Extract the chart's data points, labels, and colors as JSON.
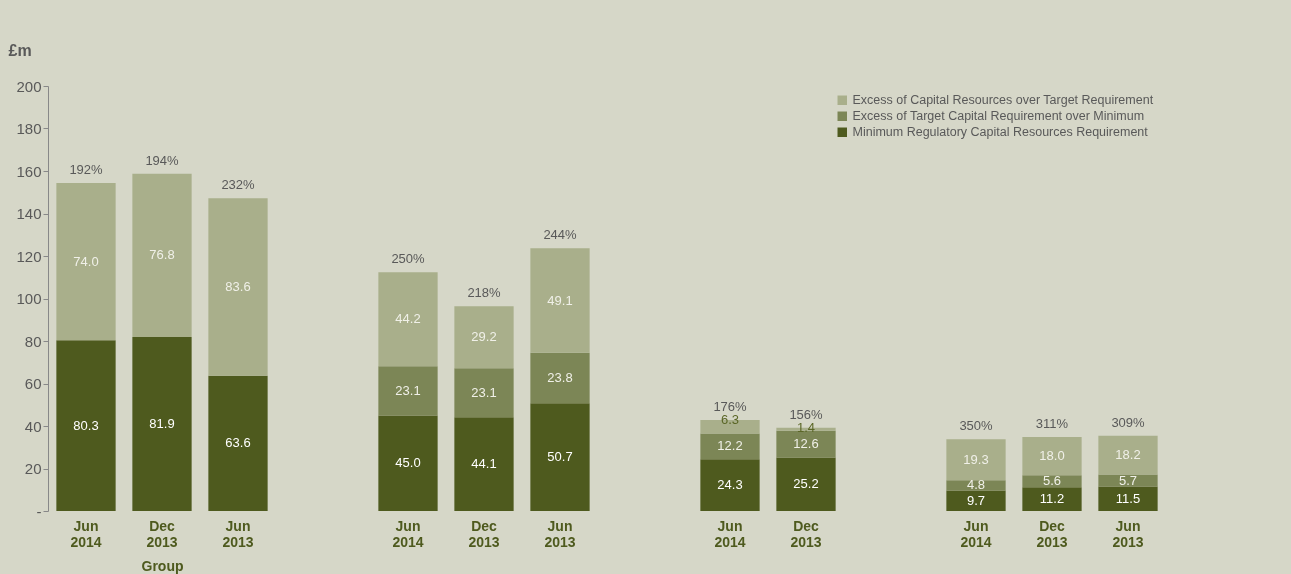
{
  "chart_data": [
    {
      "type": "bar",
      "stacked": true,
      "categories": [
        "Jun 2014",
        "Dec 2013",
        "Jun 2013"
      ],
      "xlabel": "Group",
      "ylabel": "£m",
      "legend": "top right",
      "ylim": [
        0,
        200
      ],
      "yticks": [
        {
          "value": 0,
          "label": "-"
        },
        20,
        40,
        60,
        80,
        100,
        120,
        140,
        160,
        180,
        200
      ],
      "annotations": [
        {
          "text": "192%",
          "x": "Jun 2014",
          "y": 154.3
        },
        {
          "text": "194%",
          "x": "Dec 2013",
          "y": 158.7
        },
        {
          "text": "232%",
          "x": "Jun 2013",
          "y": 147.2
        }
      ],
      "series": [
        {
          "name": "Minimum Regulatory Capital Resources Requirement",
          "color": "#4e5a1e",
          "values": [
            80.3,
            81.9,
            63.6
          ],
          "value_labels": [
            "80.3",
            "81.9",
            "63.6"
          ]
        },
        {
          "name": "Excess of Capital Resources over Target Requirement",
          "color": "#a9af8b",
          "values": [
            74.0,
            76.8,
            83.6
          ],
          "value_labels": [
            "74.0",
            "76.8",
            "83.6"
          ]
        }
      ]
    },
    {
      "type": "bar",
      "stacked": true,
      "categories": [
        "Jun 2014",
        "Dec 2013",
        "Jun 2013"
      ],
      "ylim": [
        0,
        200
      ],
      "tick_labels": "x",
      "legend": "top right",
      "annotations": [
        {
          "text": "250%",
          "x": "Jun 2014",
          "y": 112.3
        },
        {
          "text": "218%",
          "x": "Dec 2013",
          "y": 96.4
        },
        {
          "text": "244%",
          "x": "Jun 2013",
          "y": 123.6
        }
      ],
      "series": [
        {
          "name": "Minimum Regulatory Capital Resources Requirement",
          "color": "#4e5a1e",
          "values": [
            45.0,
            44.1,
            50.7
          ],
          "value_labels": [
            "45.0",
            "44.1",
            "50.7"
          ]
        },
        {
          "name": "Excess of Target Capital Requirement over Minimum",
          "color": "#7c8656",
          "values": [
            23.1,
            23.1,
            23.8
          ],
          "value_labels": [
            "23.1",
            "23.1",
            "23.8"
          ]
        },
        {
          "name": "Excess of Capital Resources over Target Requirement",
          "color": "#a9af8b",
          "values": [
            44.2,
            29.2,
            49.1
          ],
          "value_labels": [
            "44.2",
            "29.2",
            "49.1"
          ]
        }
      ]
    },
    {
      "type": "bar",
      "stacked": true,
      "categories": [
        "Jun 2014",
        "Dec 2013"
      ],
      "ylim": [
        0,
        200
      ],
      "tick_labels": "x",
      "legend": "top right",
      "annotations": [
        {
          "text": "176%",
          "x": "Jun 2014",
          "y": 42.8
        },
        {
          "text": "156%",
          "x": "Dec 2013",
          "y": 39.2
        }
      ],
      "series": [
        {
          "name": "Minimum Regulatory Capital Resources Requirement",
          "color": "#4e5a1e",
          "values": [
            24.3,
            25.2
          ],
          "value_labels": [
            "24.3",
            "25.2"
          ]
        },
        {
          "name": "Excess of Target Capital Requirement over Minimum",
          "color": "#7c8656",
          "values": [
            12.2,
            12.6
          ],
          "value_labels": [
            "12.2",
            "12.6"
          ]
        },
        {
          "name": "Excess of Capital Resources over Target Requirement",
          "color": "#a9af8b",
          "values": [
            6.3,
            1.4
          ],
          "value_labels": [
            "6.3",
            "1.4"
          ]
        }
      ]
    },
    {
      "type": "bar",
      "stacked": true,
      "categories": [
        "Jun 2014",
        "Dec 2013",
        "Jun 2013"
      ],
      "ylim": [
        0,
        200
      ],
      "tick_labels": "x",
      "legend": "top right",
      "annotations": [
        {
          "text": "350%",
          "x": "Jun 2014",
          "y": 33.8
        },
        {
          "text": "311%",
          "x": "Dec 2013",
          "y": 34.8
        },
        {
          "text": "309%",
          "x": "Jun 2013",
          "y": 35.4
        }
      ],
      "series": [
        {
          "name": "Minimum Regulatory Capital Resources Requirement",
          "color": "#4e5a1e",
          "values": [
            9.7,
            11.2,
            11.5
          ],
          "value_labels": [
            "9.7",
            "11.2",
            "11.5"
          ]
        },
        {
          "name": "Excess of Target Capital Requirement over Minimum",
          "color": "#7c8656",
          "values": [
            4.8,
            5.6,
            5.7
          ],
          "value_labels": [
            "4.8",
            "5.6",
            "5.7"
          ]
        },
        {
          "name": "Excess of Capital Resources over Target Requirement",
          "color": "#a9af8b",
          "values": [
            19.3,
            18.0,
            18.2
          ],
          "value_labels": [
            "19.3",
            "18.0",
            "18.2"
          ]
        }
      ]
    }
  ]
}
